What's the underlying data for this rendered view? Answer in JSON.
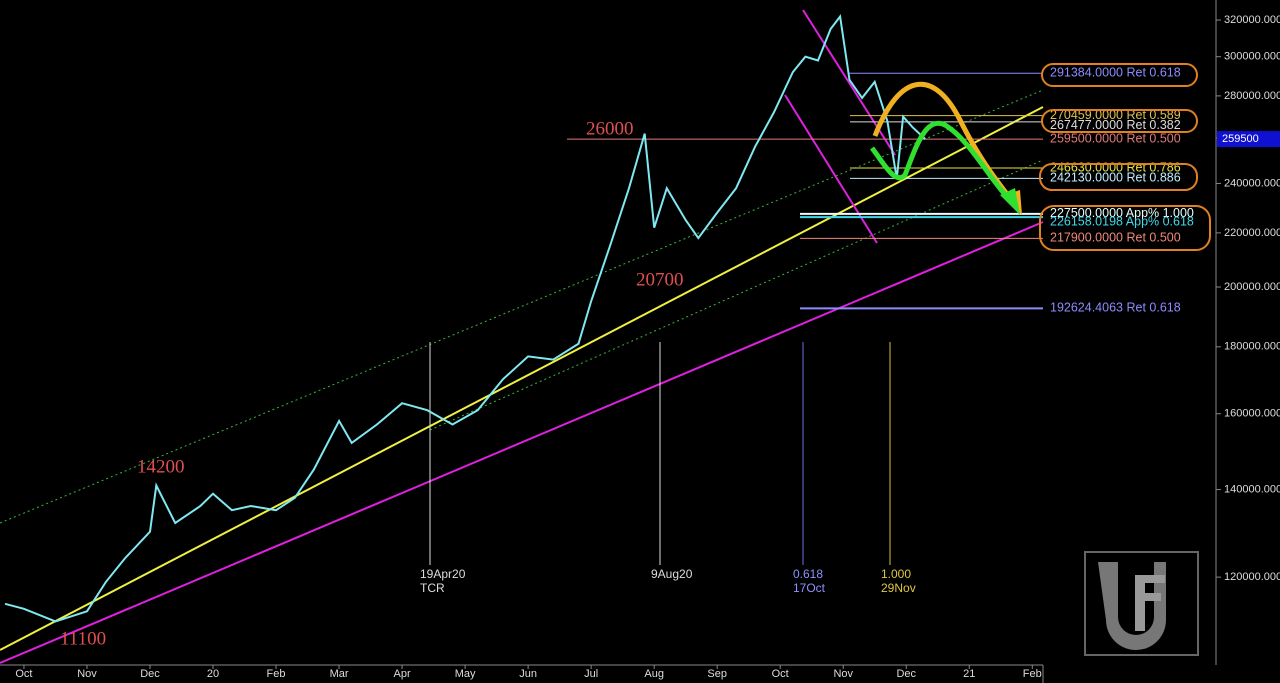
{
  "chart_data": {
    "type": "line",
    "log_scale": true,
    "grid": false,
    "color": "#7fe8f0",
    "x": [
      -0.3,
      0,
      0.5,
      1.0,
      1.3,
      1.6,
      2.0,
      2.1,
      2.4,
      2.8,
      3.0,
      3.3,
      3.6,
      4.0,
      4.3,
      4.6,
      5.0,
      5.2,
      5.6,
      6.0,
      6.4,
      6.8,
      7.2,
      7.6,
      8.0,
      8.4,
      8.8,
      9.0,
      9.3,
      9.6,
      9.85,
      10.0,
      10.2,
      10.5,
      10.7,
      11.0,
      11.3,
      11.6,
      11.9,
      12.2,
      12.4,
      12.6,
      12.8,
      12.95,
      13.1,
      13.3,
      13.5,
      13.7,
      13.85,
      13.95,
      14.1,
      14.3
    ],
    "values": [
      114500,
      113500,
      111000,
      113000,
      119000,
      124000,
      130000,
      141000,
      132000,
      136000,
      139000,
      135000,
      136000,
      135000,
      138000,
      145000,
      158000,
      152000,
      157000,
      163000,
      161000,
      157000,
      161000,
      170000,
      177000,
      176000,
      181000,
      195000,
      215000,
      238000,
      262000,
      222000,
      238000,
      225000,
      218000,
      228000,
      238000,
      256000,
      272000,
      292000,
      300000,
      298000,
      315000,
      322000,
      288000,
      279000,
      287000,
      268000,
      242000,
      270000,
      265000,
      259500
    ],
    "xlim": [
      -0.38,
      16.17
    ],
    "xticks": [
      {
        "value": 0,
        "label": "Oct"
      },
      {
        "value": 1,
        "label": "Nov"
      },
      {
        "value": 2,
        "label": "Dec"
      },
      {
        "value": 3,
        "label": "20"
      },
      {
        "value": 4,
        "label": "Feb"
      },
      {
        "value": 5,
        "label": "Mar"
      },
      {
        "value": 6,
        "label": "Apr"
      },
      {
        "value": 7,
        "label": "May"
      },
      {
        "value": 8,
        "label": "Jun"
      },
      {
        "value": 9,
        "label": "Jul"
      },
      {
        "value": 10,
        "label": "Aug"
      },
      {
        "value": 11,
        "label": "Sep"
      },
      {
        "value": 12,
        "label": "Oct"
      },
      {
        "value": 13,
        "label": "Nov"
      },
      {
        "value": 14,
        "label": "Dec"
      },
      {
        "value": 15,
        "label": "21"
      },
      {
        "value": 16,
        "label": "Feb"
      }
    ],
    "ylim": [
      102800,
      331500
    ],
    "yticks": [
      {
        "value": 120000,
        "label": "120000.000"
      },
      {
        "value": 140000,
        "label": "140000.000"
      },
      {
        "value": 160000,
        "label": "160000.000"
      },
      {
        "value": 180000,
        "label": "180000.000"
      },
      {
        "value": 200000,
        "label": "200000.000"
      },
      {
        "value": 220000,
        "label": "220000.000"
      },
      {
        "value": 240000,
        "label": "240000.000"
      },
      {
        "value": 260000,
        "label": "260000.000"
      },
      {
        "value": 280000,
        "label": "280000.000"
      },
      {
        "value": 300000,
        "label": "300000.000"
      },
      {
        "value": 320000,
        "label": "320000.000"
      }
    ],
    "last_price": 259500,
    "levels": [
      {
        "value": 291384,
        "label": "291384.0000 Ret 0.618",
        "color": "#8c8cff"
      },
      {
        "value": 270459,
        "label": "270459.0000 Ret 0.589",
        "color": "#e0c050"
      },
      {
        "value": 267477,
        "label": "267477.0000 Ret 0.382",
        "color": "#dddddd"
      },
      {
        "value": 259500,
        "label": "259500.0000 Ret 0.500",
        "color": "#e07a7a"
      },
      {
        "value": 246630,
        "label": "246630.0000 Ret 0.786",
        "color": "#e8e040"
      },
      {
        "value": 242130,
        "label": "242130.0000 Ret 0.886",
        "color": "#bfefff"
      },
      {
        "value": 227500,
        "label": "227500.0000 App% 1.000",
        "color": "#e6ffff"
      },
      {
        "value": 226158.0198,
        "label": "226158.0198 App% 0.618",
        "color": "#40d8e8"
      },
      {
        "value": 217900,
        "label": "217900.0000 Ret 0.500",
        "color": "#f08878"
      },
      {
        "value": 192624.4063,
        "label": "192624.4063 Ret 0.618",
        "color": "#8c8cff"
      }
    ],
    "annotations": [
      "26000",
      "20700",
      "14200",
      "11100"
    ],
    "markers": [
      {
        "date": "19Apr20",
        "note": "TCR",
        "color": "#dddddd"
      },
      {
        "date": "9Aug20",
        "color": "#dddddd"
      },
      {
        "ratio": "0.618",
        "date": "17Oct",
        "color": "#7070e0"
      },
      {
        "ratio": "1.000",
        "date": "29Nov",
        "color": "#d8c040"
      }
    ]
  }
}
